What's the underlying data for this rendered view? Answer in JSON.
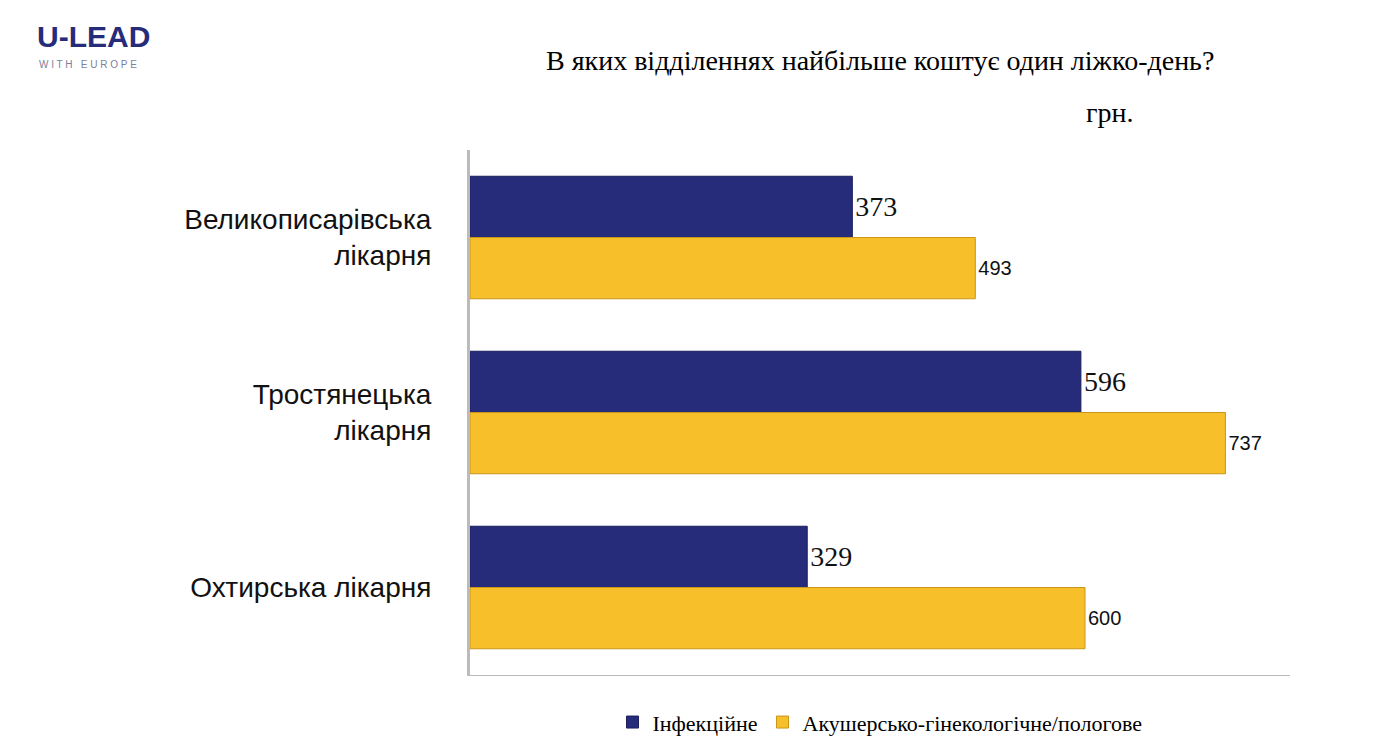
{
  "chart_data": {
    "type": "bar",
    "orientation": "horizontal",
    "title": "В яких відділеннях найбільше коштує один ліжко-день?",
    "subtitle": "грн.",
    "annotations": [
      "U-LEAD",
      "WITH EUROPE"
    ],
    "categories": [
      "Великописарівська лікарня",
      "Тростянецька лікарня",
      "Охтирська лікарня"
    ],
    "series": [
      {
        "name": "Інфекційне",
        "color": "#262c7a",
        "values": [
          373,
          596,
          329
        ]
      },
      {
        "name": "Акушерсько-гінекологічне/пологове",
        "color": "#f7bf2a",
        "values": [
          493,
          737,
          600
        ]
      }
    ],
    "xlim": [
      0,
      800
    ],
    "xticks": [],
    "tick_labels": "y",
    "data_labels": true,
    "grid": false,
    "legend": "bottom"
  }
}
